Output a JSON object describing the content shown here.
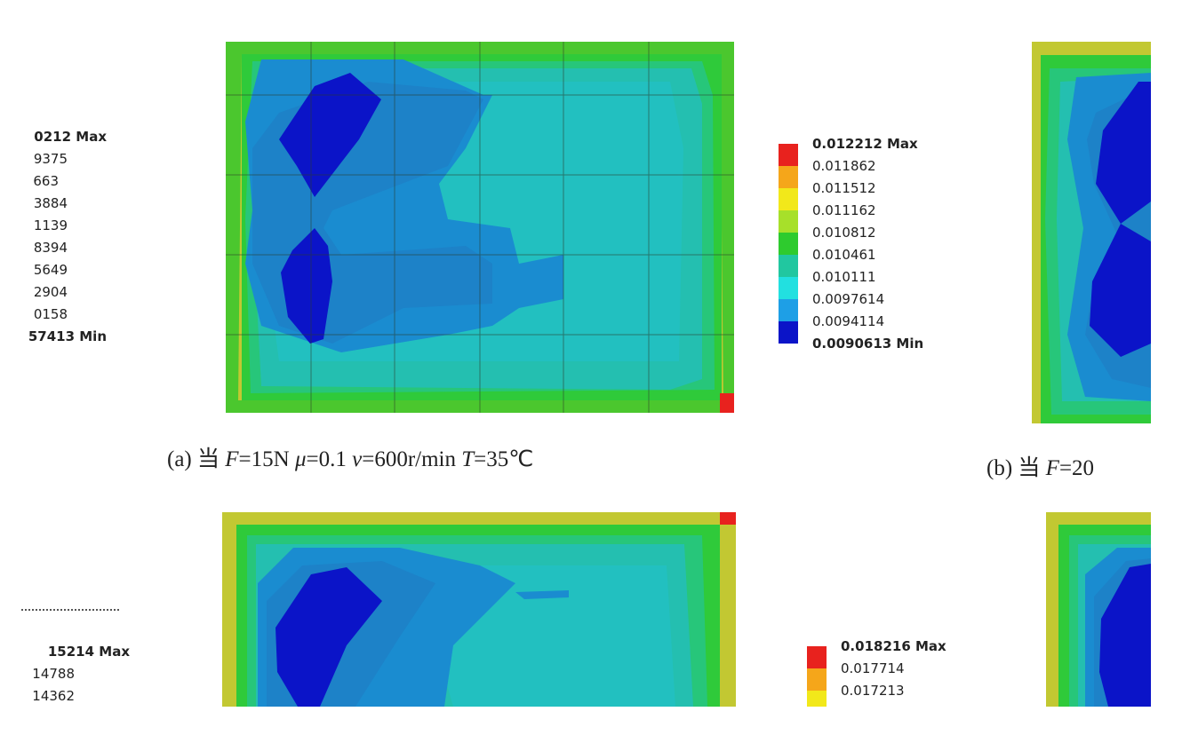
{
  "panel_a": {
    "caption_prefix": "(a) 当 ",
    "caption_F_var": "F",
    "caption_F_val": "=15N ",
    "caption_mu_var": "μ",
    "caption_mu_val": "=0.1 ",
    "caption_v_var": "v",
    "caption_v_val": "=600r/min ",
    "caption_T_var": "T",
    "caption_T_val": "=35℃",
    "legend": [
      {
        "label": "0.012212 Max",
        "color": "#e8221e",
        "bold": true
      },
      {
        "label": "0.011862",
        "color": "#f5a61a",
        "bold": false
      },
      {
        "label": "0.011512",
        "color": "#f2e81a",
        "bold": false
      },
      {
        "label": "0.011162",
        "color": "#a7e02a",
        "bold": false
      },
      {
        "label": "0.010812",
        "color": "#2ecb2e",
        "bold": false
      },
      {
        "label": "0.010461",
        "color": "#21c7a0",
        "bold": false
      },
      {
        "label": "0.010111",
        "color": "#22e0e0",
        "bold": false
      },
      {
        "label": "0.0097614",
        "color": "#1e9fe6",
        "bold": false
      },
      {
        "label": "0.0094114",
        "color": "#1f55e6",
        "bold": false
      },
      {
        "label": "0.0090613 Min",
        "color": "#0b14c8",
        "bold": true
      }
    ]
  },
  "panel_b": {
    "caption_prefix": "(b)  当 ",
    "caption_F_var": "F",
    "caption_F_val": "=20"
  },
  "panel_c": {
    "legend": [
      {
        "label": "0.018216 Max",
        "color": "#e8221e",
        "bold": true
      },
      {
        "label": "0.017714",
        "color": "#f5a61a",
        "bold": false
      },
      {
        "label": "0.017213",
        "color": "#f2e81a",
        "bold": false
      }
    ]
  },
  "cut_left_legend_top": [
    {
      "label": "0212 Max",
      "bold": true
    },
    {
      "label": "9375",
      "bold": false
    },
    {
      "label": "663",
      "bold": false
    },
    {
      "label": "3884",
      "bold": false
    },
    {
      "label": "1139",
      "bold": false
    },
    {
      "label": "8394",
      "bold": false
    },
    {
      "label": "5649",
      "bold": false
    },
    {
      "label": "2904",
      "bold": false
    },
    {
      "label": "0158",
      "bold": false
    },
    {
      "label": "57413 Min",
      "bold": true
    }
  ],
  "cut_left_legend_bottom": [
    {
      "label": "15214 Max",
      "bold": true
    },
    {
      "label": "14788",
      "bold": false
    },
    {
      "label": "14362",
      "bold": false
    }
  ]
}
